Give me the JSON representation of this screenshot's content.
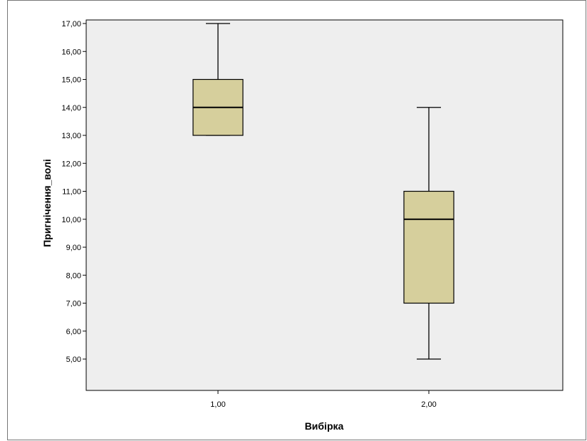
{
  "chart_data": {
    "type": "box",
    "xlabel": "Вибірка",
    "ylabel": "Пригнічення_волі",
    "x_tick_labels": [
      "1,00",
      "2,00"
    ],
    "y_tick_labels": [
      "5,00",
      "6,00",
      "7,00",
      "8,00",
      "9,00",
      "10,00",
      "11,00",
      "12,00",
      "13,00",
      "14,00",
      "15,00",
      "16,00",
      "17,00"
    ],
    "y_ticks": [
      5,
      6,
      7,
      8,
      9,
      10,
      11,
      12,
      13,
      14,
      15,
      16,
      17
    ],
    "ylim": [
      4,
      18
    ],
    "grid": false,
    "box_color": "#d6cf9c",
    "plot_background": "#eeeeee",
    "series": [
      {
        "category": "1,00",
        "min": 13,
        "q1": 13,
        "median": 14,
        "q3": 15,
        "max": 17
      },
      {
        "category": "2,00",
        "min": 5,
        "q1": 7,
        "median": 10,
        "q3": 11,
        "max": 14
      }
    ]
  }
}
